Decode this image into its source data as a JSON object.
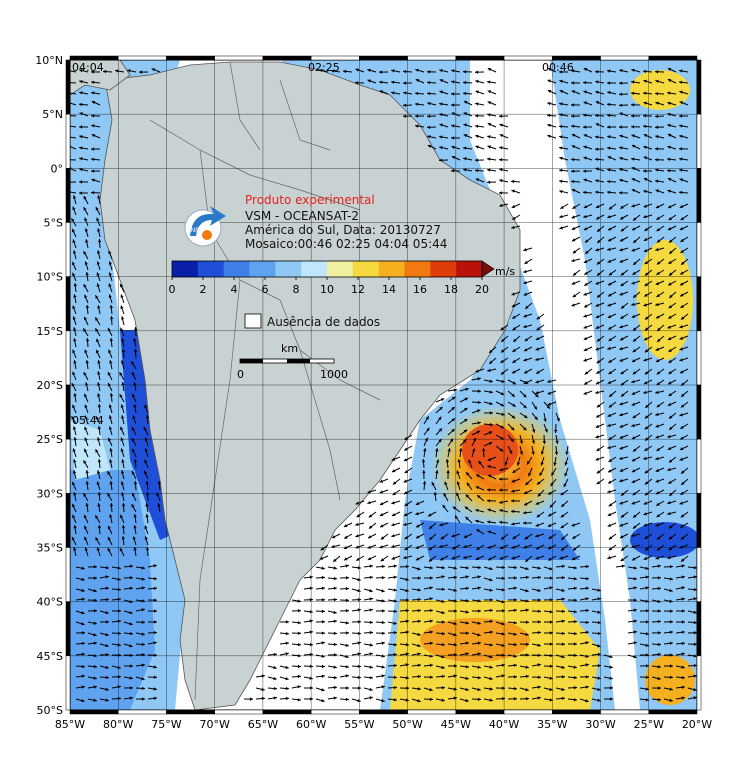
{
  "map": {
    "title": "Produto experimental",
    "sensor": "VSM - OCEANSAT-2",
    "region_date": "América do Sul, Data: 20130727",
    "mosaic": "Mosaico:00:46 02:25 04:04 05:44",
    "logo_text": "INPE",
    "no_data_label": "Ausência de dados",
    "scale_bar": {
      "unit": "km",
      "start": "0",
      "end": "1000"
    },
    "pass_times": [
      "04:04",
      "02:25",
      "00:46",
      "05:44"
    ],
    "lat_labels": [
      "10°N",
      "5°N",
      "0°",
      "5°S",
      "10°S",
      "15°S",
      "20°S",
      "25°S",
      "30°S",
      "35°S",
      "40°S",
      "45°S",
      "50°S"
    ],
    "lon_labels": [
      "85°W",
      "80°W",
      "75°W",
      "70°W",
      "65°W",
      "60°W",
      "55°W",
      "50°W",
      "45°W",
      "40°W",
      "35°W",
      "30°W",
      "25°W",
      "20°W"
    ],
    "colorbar": {
      "unit": "m/s",
      "ticks": [
        "0",
        "2",
        "4",
        "6",
        "8",
        "10",
        "12",
        "14",
        "16",
        "18",
        "20"
      ],
      "colors": [
        "#0a1fa8",
        "#1f4fd8",
        "#3f7fe8",
        "#5fa3f0",
        "#8fc7f5",
        "#bfe6fa",
        "#f0f0a0",
        "#f5d940",
        "#f5b020",
        "#f07a10",
        "#e03c0a",
        "#b8120a",
        "#7a0a0a"
      ]
    },
    "colors": {
      "land": "#c8d2d2",
      "ocean_nodata": "#ffffff",
      "grid": "#000000",
      "arrow": "#000000"
    }
  }
}
